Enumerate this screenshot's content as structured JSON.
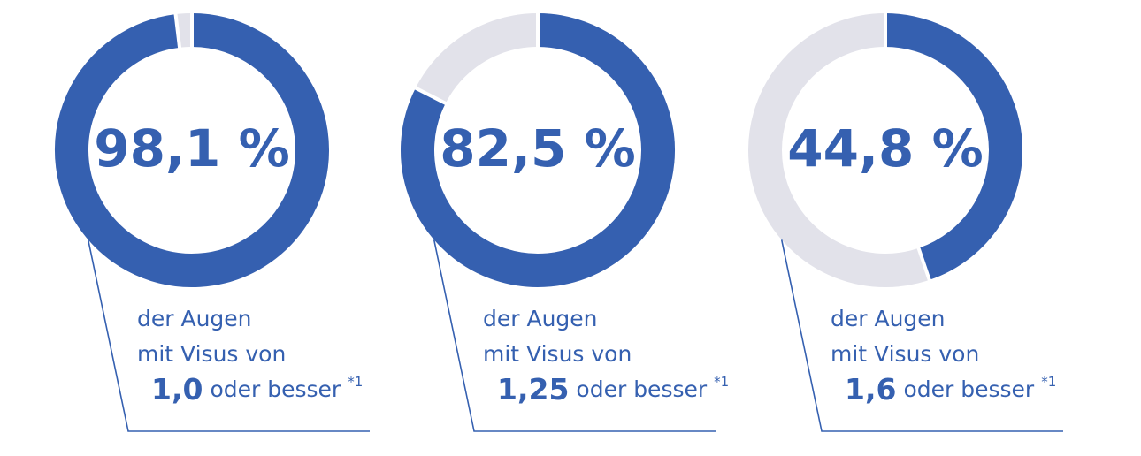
{
  "chart_data": [
    {
      "type": "donut",
      "values": [
        98.1
      ],
      "value_labels": [
        "98,1 %"
      ],
      "color": "#3560b0",
      "track_color": "#e2e2ea",
      "caption": [
        "der Augen",
        "mit Visus von"
      ],
      "threshold": "1,0",
      "threshold_suffix": "oder besser",
      "footnote": "*1"
    },
    {
      "type": "donut",
      "values": [
        82.5
      ],
      "value_labels": [
        "82,5 %"
      ],
      "color": "#3560b0",
      "track_color": "#e2e2ea",
      "caption": [
        "der Augen",
        "mit Visus von"
      ],
      "threshold": "1,25",
      "threshold_suffix": "oder besser",
      "footnote": "*1"
    },
    {
      "type": "donut",
      "values": [
        44.8
      ],
      "value_labels": [
        "44,8 %"
      ],
      "color": "#3560b0",
      "track_color": "#e2e2ea",
      "caption": [
        "der Augen",
        "mit Visus von"
      ],
      "threshold": "1,6",
      "threshold_suffix": "oder besser",
      "footnote": "*1"
    }
  ]
}
